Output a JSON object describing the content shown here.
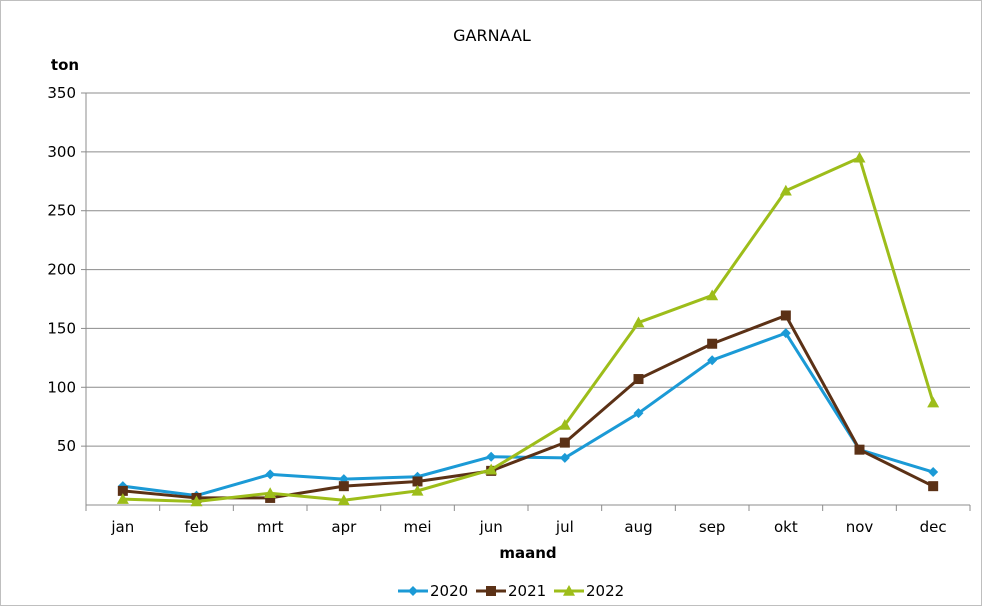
{
  "chart_data": {
    "type": "line",
    "title": "GARNAAL",
    "xlabel": "maand",
    "ylabel": "ton",
    "ylim": [
      0,
      350
    ],
    "yticks": [
      50,
      100,
      150,
      200,
      250,
      300,
      350
    ],
    "grid": true,
    "legend_position": "bottom",
    "categories": [
      "jan",
      "feb",
      "mrt",
      "apr",
      "mei",
      "jun",
      "jul",
      "aug",
      "sep",
      "okt",
      "nov",
      "dec"
    ],
    "series": [
      {
        "name": "2020",
        "color": "#1b9ad6",
        "marker": "diamond",
        "values": [
          16,
          8,
          26,
          22,
          24,
          41,
          40,
          78,
          123,
          146,
          47,
          28
        ]
      },
      {
        "name": "2021",
        "color": "#5b3116",
        "marker": "square",
        "values": [
          12,
          6,
          6,
          16,
          20,
          29,
          53,
          107,
          137,
          161,
          47,
          16
        ]
      },
      {
        "name": "2022",
        "color": "#9dbd1a",
        "marker": "triangle",
        "values": [
          5,
          3,
          10,
          4,
          12,
          30,
          68,
          155,
          178,
          267,
          295,
          87
        ]
      }
    ]
  }
}
